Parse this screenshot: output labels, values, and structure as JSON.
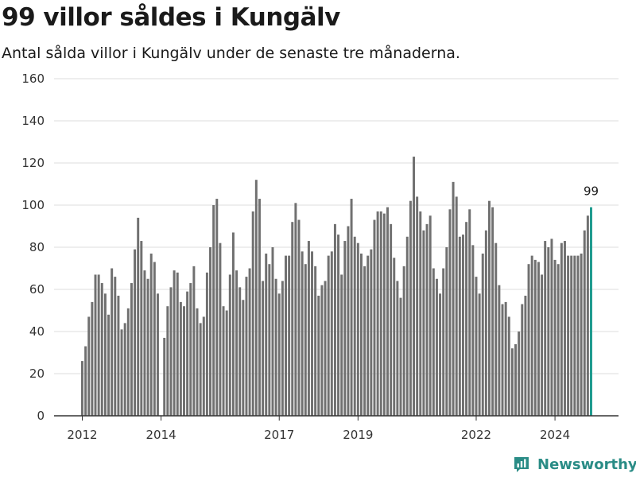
{
  "title": "99 villor såldes i Kungälv",
  "subtitle": "Antal sålda villor i Kungälv under de senaste tre månaderna.",
  "brand": {
    "name": "Newsworthy",
    "icon": "newsworthy-logo-icon"
  },
  "colors": {
    "bar": "#707070",
    "highlight": "#1f9b8f",
    "grid": "#dcdcdc",
    "axis": "#333333",
    "brand": "#2a8c86"
  },
  "chart_data": {
    "type": "bar",
    "ylim": [
      0,
      160
    ],
    "yticks": [
      0,
      20,
      40,
      60,
      80,
      100,
      120,
      140,
      160
    ],
    "grid": true,
    "x_ticks": [
      "2012",
      "2014",
      "2017",
      "2019",
      "2022",
      "2024"
    ],
    "highlight": {
      "label": "99",
      "value": 99
    },
    "values": [
      26,
      33,
      47,
      54,
      67,
      67,
      63,
      58,
      48,
      70,
      66,
      57,
      41,
      44,
      51,
      63,
      79,
      94,
      83,
      69,
      65,
      77,
      73,
      58,
      0,
      37,
      52,
      61,
      69,
      68,
      54,
      52,
      59,
      63,
      71,
      51,
      44,
      47,
      68,
      80,
      100,
      103,
      82,
      52,
      50,
      67,
      87,
      69,
      61,
      55,
      66,
      70,
      97,
      112,
      103,
      64,
      77,
      72,
      80,
      65,
      58,
      64,
      76,
      76,
      92,
      101,
      93,
      78,
      72,
      83,
      78,
      71,
      57,
      62,
      64,
      76,
      78,
      91,
      86,
      67,
      83,
      90,
      103,
      85,
      82,
      77,
      71,
      76,
      79,
      93,
      97,
      97,
      96,
      99,
      91,
      75,
      64,
      56,
      71,
      85,
      102,
      123,
      104,
      97,
      88,
      91,
      95,
      70,
      65,
      58,
      70,
      80,
      98,
      111,
      104,
      85,
      86,
      92,
      98,
      81,
      66,
      58,
      77,
      88,
      102,
      99,
      82,
      62,
      53,
      54,
      47,
      32,
      34,
      40,
      53,
      57,
      72,
      76,
      74,
      73,
      67,
      83,
      80,
      84,
      74,
      72,
      82,
      83,
      76,
      76,
      76,
      76,
      77,
      88,
      95,
      99
    ]
  }
}
